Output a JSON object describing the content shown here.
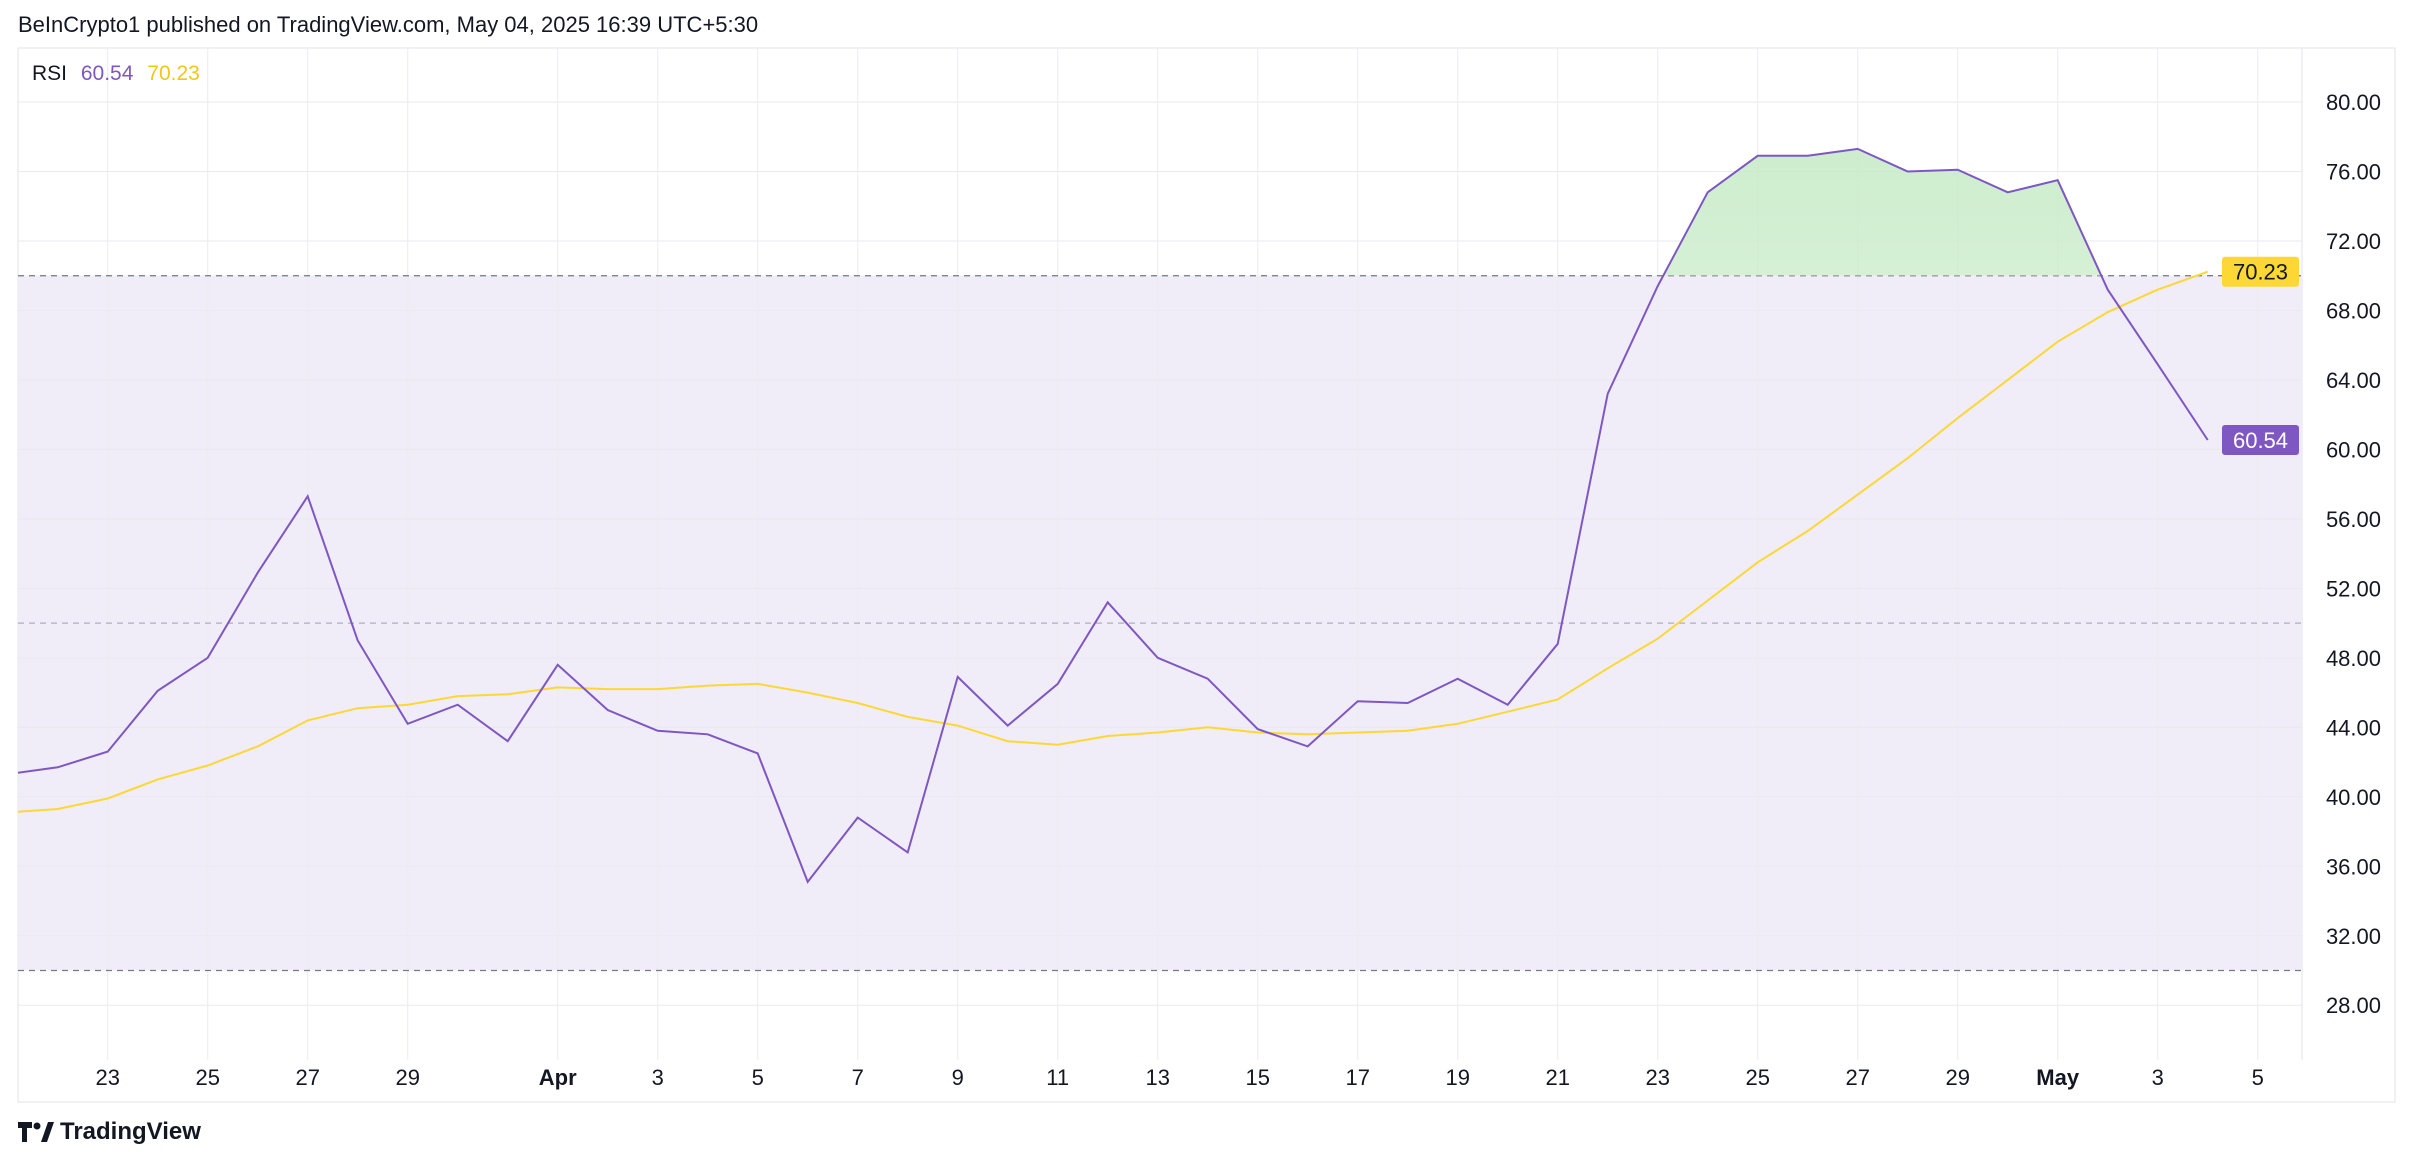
{
  "header": {
    "published": "BeInCrypto1 published on TradingView.com, May 04, 2025 16:39 UTC+5:30"
  },
  "legend": {
    "name": "RSI",
    "rsi_value": "60.54",
    "ma_value": "70.23"
  },
  "footer": {
    "logo_text": "TradingView"
  },
  "colors": {
    "rsi": "#7e57c2",
    "ma": "#fdd835",
    "band": "#f0ecf8",
    "overbought_fill": "#c8ebc8",
    "grid": "#f0f0f3"
  },
  "chart_data": {
    "type": "line",
    "title": "RSI",
    "x": [
      "Mar 21",
      "Mar 22",
      "Mar 23",
      "Mar 24",
      "Mar 25",
      "Mar 26",
      "Mar 27",
      "Mar 28",
      "Mar 29",
      "Mar 30",
      "Mar 31",
      "Apr 1",
      "Apr 2",
      "Apr 3",
      "Apr 4",
      "Apr 5",
      "Apr 6",
      "Apr 7",
      "Apr 8",
      "Apr 9",
      "Apr 10",
      "Apr 11",
      "Apr 12",
      "Apr 13",
      "Apr 14",
      "Apr 15",
      "Apr 16",
      "Apr 17",
      "Apr 18",
      "Apr 19",
      "Apr 20",
      "Apr 21",
      "Apr 22",
      "Apr 23",
      "Apr 24",
      "Apr 25",
      "Apr 26",
      "Apr 27",
      "Apr 28",
      "Apr 29",
      "Apr 30",
      "May 1",
      "May 2",
      "May 3",
      "May 4"
    ],
    "series": [
      {
        "name": "RSI",
        "color": "#7e57c2",
        "values": [
          41.3,
          41.7,
          42.6,
          46.1,
          48.0,
          52.9,
          57.3,
          49.0,
          44.2,
          45.3,
          43.2,
          47.6,
          45.0,
          43.8,
          43.6,
          42.5,
          35.1,
          38.8,
          36.8,
          46.9,
          44.1,
          46.5,
          51.2,
          48.0,
          46.8,
          43.9,
          42.9,
          45.5,
          45.4,
          46.8,
          45.3,
          48.8,
          63.2,
          69.4,
          74.8,
          76.9,
          76.9,
          77.3,
          76.0,
          76.1,
          74.8,
          75.5,
          69.2,
          64.9,
          60.54
        ]
      },
      {
        "color": "#fdd835",
        "values": [
          39.1,
          39.3,
          39.9,
          41.0,
          41.8,
          42.9,
          44.4,
          45.1,
          45.3,
          45.8,
          45.9,
          46.3,
          46.2,
          46.2,
          46.4,
          46.5,
          46.0,
          45.4,
          44.6,
          44.1,
          43.2,
          43.0,
          43.5,
          43.7,
          44.0,
          43.7,
          43.6,
          43.7,
          43.8,
          44.2,
          44.9,
          45.6,
          47.4,
          49.1,
          51.3,
          53.5,
          55.3,
          57.4,
          59.5,
          61.8,
          64.0,
          66.2,
          67.9,
          69.2,
          70.23
        ]
      }
    ],
    "xticks": [
      {
        "label": "23",
        "x": "Mar 23"
      },
      {
        "label": "25",
        "x": "Mar 25"
      },
      {
        "label": "27",
        "x": "Mar 27"
      },
      {
        "label": "29",
        "x": "Mar 29"
      },
      {
        "label": "Apr",
        "x": "Apr 1",
        "bold": true
      },
      {
        "label": "3",
        "x": "Apr 3"
      },
      {
        "label": "5",
        "x": "Apr 5"
      },
      {
        "label": "7",
        "x": "Apr 7"
      },
      {
        "label": "9",
        "x": "Apr 9"
      },
      {
        "label": "11",
        "x": "Apr 11"
      },
      {
        "label": "13",
        "x": "Apr 13"
      },
      {
        "label": "15",
        "x": "Apr 15"
      },
      {
        "label": "17",
        "x": "Apr 17"
      },
      {
        "label": "19",
        "x": "Apr 19"
      },
      {
        "label": "21",
        "x": "Apr 21"
      },
      {
        "label": "23",
        "x": "Apr 23"
      },
      {
        "label": "25",
        "x": "Apr 25"
      },
      {
        "label": "27",
        "x": "Apr 27"
      },
      {
        "label": "29",
        "x": "Apr 29"
      },
      {
        "label": "May",
        "x": "May 1",
        "bold": true
      },
      {
        "label": "3",
        "x": "May 3"
      },
      {
        "label": "5",
        "x": "May 5"
      }
    ],
    "yticks": [
      "80.00",
      "76.00",
      "72.00",
      "68.00",
      "64.00",
      "60.00",
      "56.00",
      "52.00",
      "48.00",
      "44.00",
      "40.00",
      "36.00",
      "32.00",
      "28.00"
    ],
    "ylim": [
      25.5,
      83.5
    ],
    "bands": {
      "upper": 70,
      "middle": 50,
      "lower": 30
    },
    "last_labels": [
      {
        "value": "70.23",
        "color": "#fdd835",
        "text_color": "#131722"
      },
      {
        "value": "60.54",
        "color": "#7e57c2",
        "text_color": "#ffffff"
      }
    ],
    "grid": true
  }
}
